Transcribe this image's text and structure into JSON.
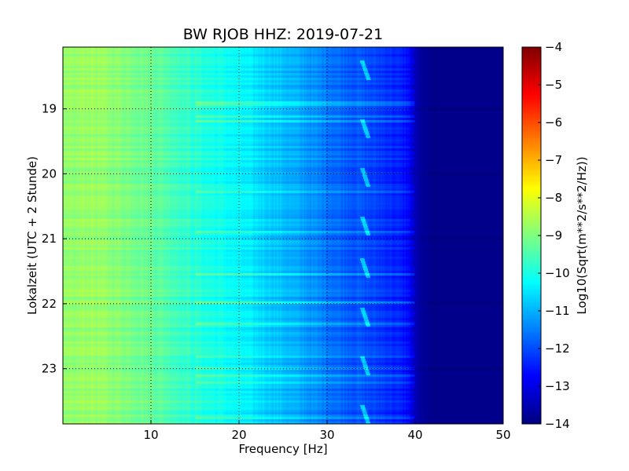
{
  "chart_data": {
    "type": "heatmap",
    "title": "BW RJOB HHZ: 2019-07-21",
    "xlabel": "Frequency [Hz]",
    "ylabel": "Lokalzeit (UTC + 2 Stunde)",
    "xlim": [
      0,
      50
    ],
    "ylim_hours": [
      18.05,
      23.85
    ],
    "x_ticks": [
      10,
      20,
      30,
      40,
      50
    ],
    "y_ticks": [
      19,
      20,
      21,
      22,
      23
    ],
    "grid": true,
    "colorbar": {
      "label": "Log10(Sqrt(m**2/s**2/Hz))",
      "range": [
        -14,
        -4
      ],
      "ticks": [
        -4,
        -5,
        -6,
        -7,
        -8,
        -9,
        -10,
        -11,
        -12,
        -13,
        -14
      ],
      "colormap": "jet"
    },
    "spectral_profile": {
      "frequency_hz": [
        0,
        3,
        6,
        10,
        13,
        16,
        19,
        22,
        25,
        28,
        31,
        34,
        37,
        39,
        40.5,
        42,
        50
      ],
      "log10_amplitude": [
        -8.9,
        -8.7,
        -8.9,
        -9.2,
        -9.6,
        -9.95,
        -10.2,
        -10.55,
        -10.9,
        -11.3,
        -11.7,
        -12.0,
        -12.3,
        -12.6,
        -13.7,
        -13.9,
        -13.9
      ]
    },
    "recurring_feature": {
      "frequency_hz": 34.3,
      "times_hours": [
        18.4,
        19.3,
        20.05,
        20.8,
        21.45,
        22.2,
        22.95,
        23.7
      ]
    }
  }
}
